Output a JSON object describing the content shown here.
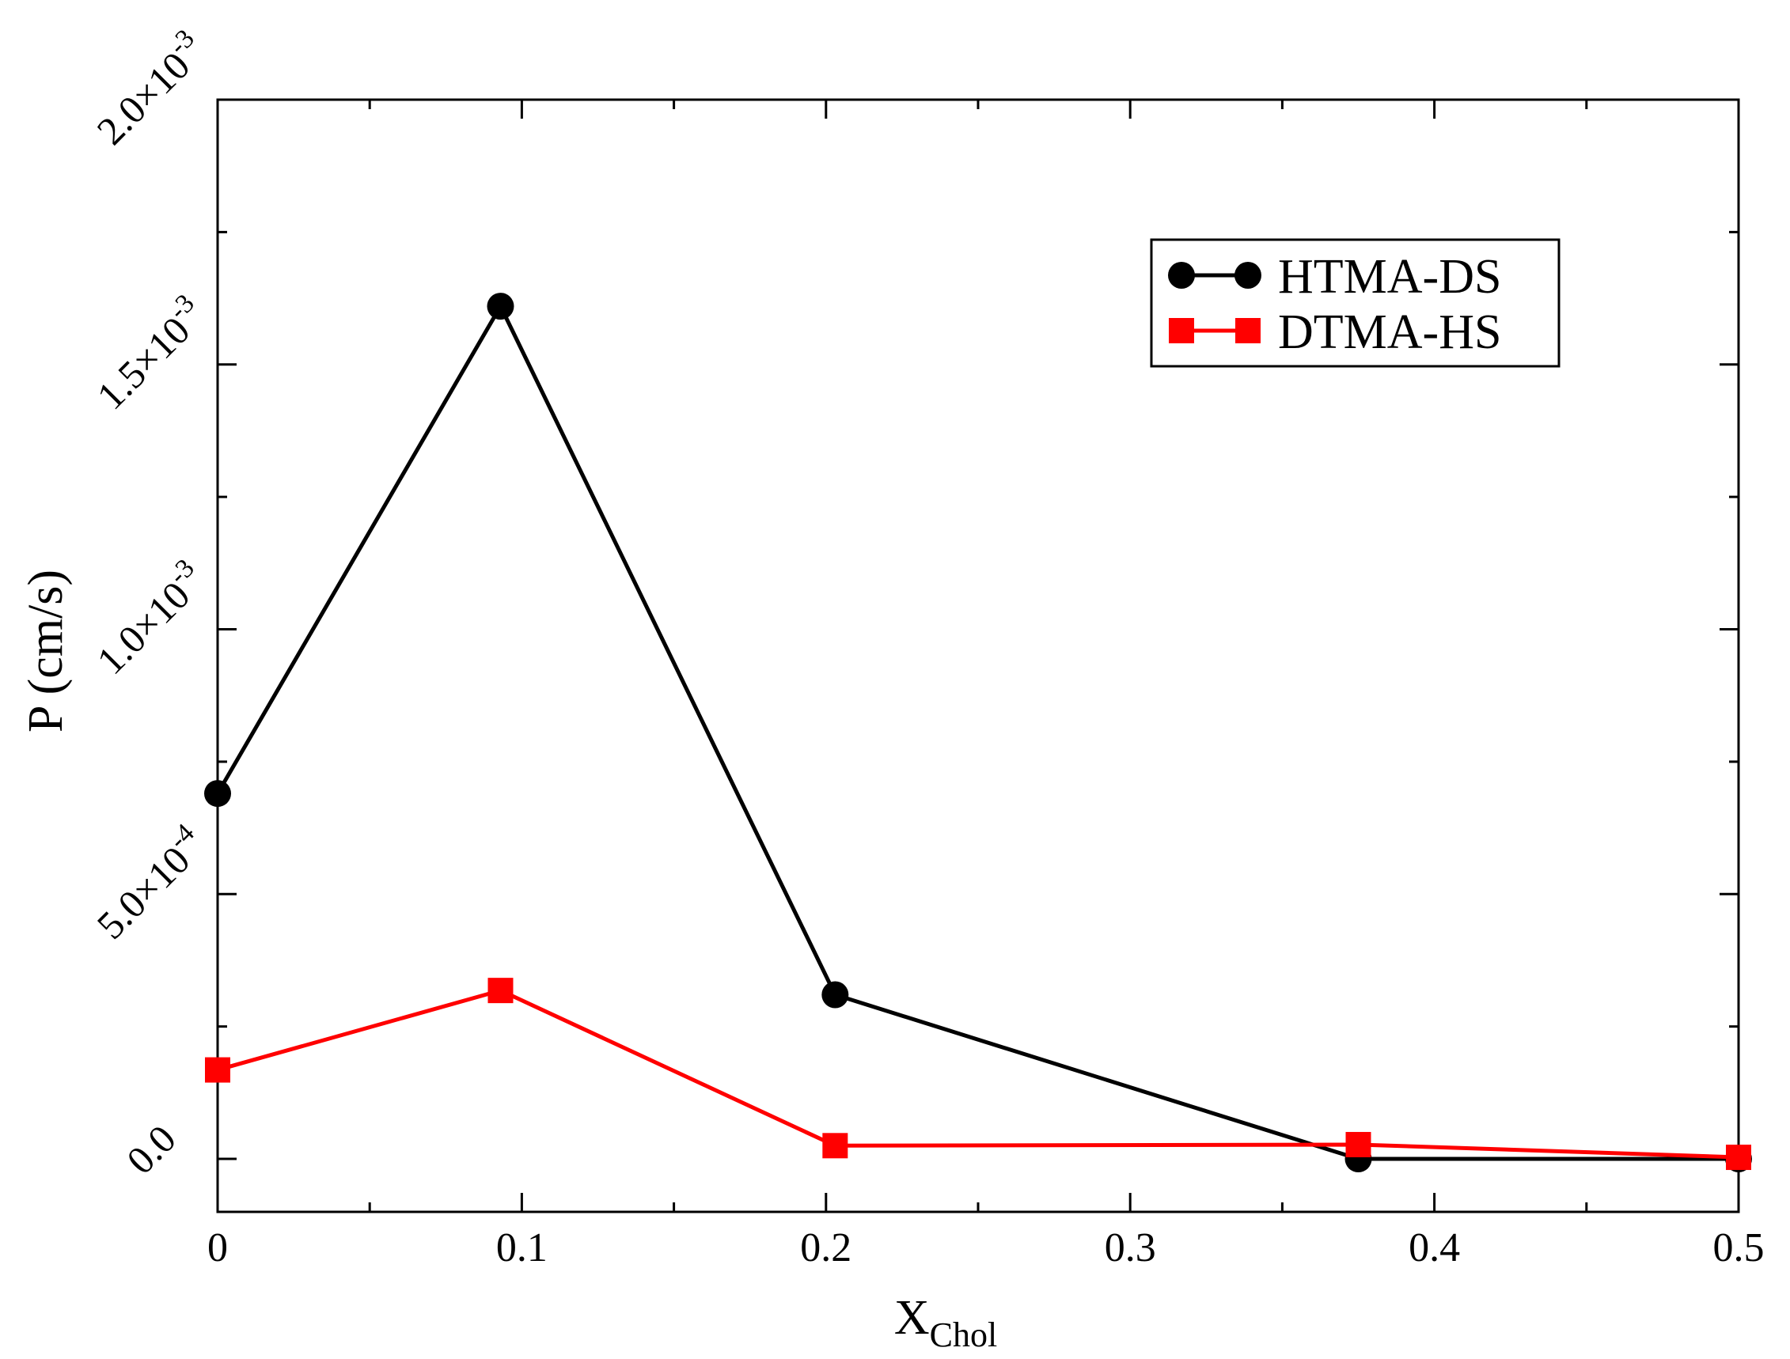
{
  "chart_data": {
    "type": "line",
    "xlabel": "X",
    "xlabel_sub": "Chol",
    "ylabel": "P (cm/s)",
    "xlim": [
      0,
      0.5
    ],
    "ylim": [
      -0.0001,
      0.002
    ],
    "x_ticks": [
      {
        "value": 0,
        "label": "0"
      },
      {
        "value": 0.1,
        "label": "0.1"
      },
      {
        "value": 0.2,
        "label": "0.2"
      },
      {
        "value": 0.3,
        "label": "0.3"
      },
      {
        "value": 0.4,
        "label": "0.4"
      },
      {
        "value": 0.5,
        "label": "0.5"
      }
    ],
    "x_minor_ticks": [
      0.05,
      0.15,
      0.25,
      0.35,
      0.45
    ],
    "y_ticks": [
      {
        "value": 0,
        "mantissa": "0.0",
        "exponent": ""
      },
      {
        "value": 0.0005,
        "mantissa": "5.0×10",
        "exponent": "-4"
      },
      {
        "value": 0.001,
        "mantissa": "1.0×10",
        "exponent": "-3"
      },
      {
        "value": 0.0015,
        "mantissa": "1.5×10",
        "exponent": "-3"
      },
      {
        "value": 0.002,
        "mantissa": "2.0×10",
        "exponent": "-3"
      }
    ],
    "y_minor_ticks": [
      0.00025,
      0.00075,
      0.00125,
      0.00175
    ],
    "grid": false,
    "legend_position": "top-right",
    "series": [
      {
        "name": "HTMA-DS",
        "color": "#000000",
        "marker": "circle",
        "x": [
          0,
          0.093,
          0.203,
          0.375,
          0.5
        ],
        "y": [
          0.00069,
          0.00161,
          0.00031,
          0.0,
          0.0
        ]
      },
      {
        "name": "DTMA-HS",
        "color": "#ff0000",
        "marker": "square",
        "x": [
          0,
          0.093,
          0.203,
          0.375,
          0.5
        ],
        "y": [
          0.000168,
          0.000318,
          2.5e-05,
          2.7e-05,
          3e-06
        ]
      }
    ]
  }
}
